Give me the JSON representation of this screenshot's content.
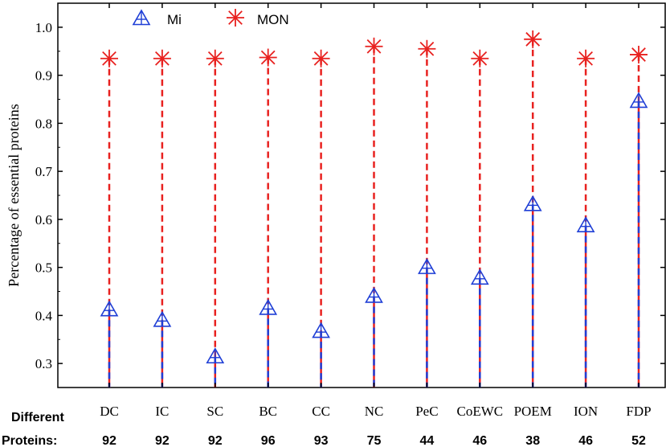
{
  "chart_data": {
    "type": "scatter",
    "ylabel": "Percentage of essential proteins",
    "ylim": [
      0.25,
      1.05
    ],
    "yticks": [
      "0.3",
      "0.4",
      "0.5",
      "0.6",
      "0.7",
      "0.8",
      "0.9",
      "1.0"
    ],
    "categories": [
      "DC",
      "IC",
      "SC",
      "BC",
      "CC",
      "NC",
      "PeC",
      "CoEWC",
      "POEM",
      "ION",
      "FDP"
    ],
    "series": [
      {
        "name": "Mi",
        "color": "#1f3fd6",
        "marker": "triangle",
        "values": [
          0.412,
          0.39,
          0.314,
          0.415,
          0.367,
          0.44,
          0.5,
          0.478,
          0.631,
          0.587,
          0.846
        ]
      },
      {
        "name": "MON",
        "color": "#e8211f",
        "marker": "asterisk",
        "values": [
          0.935,
          0.935,
          0.935,
          0.937,
          0.935,
          0.96,
          0.955,
          0.935,
          0.975,
          0.935,
          0.943
        ]
      }
    ],
    "legend_position": "top-left",
    "bottom_rows": {
      "label_line1": "Different",
      "label_line2": "Proteins:",
      "values": [
        "92",
        "92",
        "92",
        "96",
        "93",
        "75",
        "44",
        "46",
        "38",
        "46",
        "52"
      ]
    }
  }
}
